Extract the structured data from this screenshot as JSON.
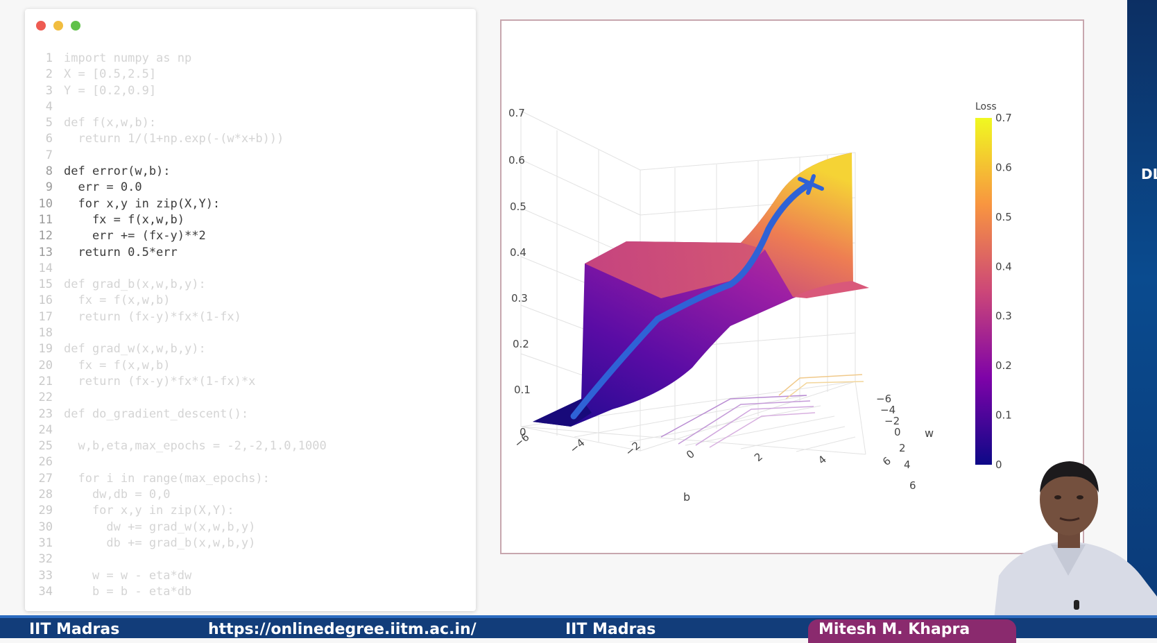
{
  "window_controls": {
    "close_color": "#ee5b52",
    "minimize_color": "#f1bd3f",
    "maximize_color": "#5fc149"
  },
  "code_lines": [
    {
      "n": "1",
      "text": "import numpy as np",
      "bright": false
    },
    {
      "n": "2",
      "text": "X = [0.5,2.5]",
      "bright": false
    },
    {
      "n": "3",
      "text": "Y = [0.2,0.9]",
      "bright": false
    },
    {
      "n": "4",
      "text": "",
      "bright": false
    },
    {
      "n": "5",
      "text": "def f(x,w,b):",
      "bright": false
    },
    {
      "n": "6",
      "text": "  return 1/(1+np.exp(-(w*x+b)))",
      "bright": false
    },
    {
      "n": "7",
      "text": "",
      "bright": false
    },
    {
      "n": "8",
      "text": "def error(w,b):",
      "bright": true
    },
    {
      "n": "9",
      "text": "  err = 0.0",
      "bright": true
    },
    {
      "n": "10",
      "text": "  for x,y in zip(X,Y):",
      "bright": true
    },
    {
      "n": "11",
      "text": "    fx = f(x,w,b)",
      "bright": true
    },
    {
      "n": "12",
      "text": "    err += (fx-y)**2",
      "bright": true
    },
    {
      "n": "13",
      "text": "  return 0.5*err",
      "bright": true
    },
    {
      "n": "14",
      "text": "",
      "bright": false
    },
    {
      "n": "15",
      "text": "def grad_b(x,w,b,y):",
      "bright": false
    },
    {
      "n": "16",
      "text": "  fx = f(x,w,b)",
      "bright": false
    },
    {
      "n": "17",
      "text": "  return (fx-y)*fx*(1-fx)",
      "bright": false
    },
    {
      "n": "18",
      "text": "",
      "bright": false
    },
    {
      "n": "19",
      "text": "def grad_w(x,w,b,y):",
      "bright": false
    },
    {
      "n": "20",
      "text": "  fx = f(x,w,b)",
      "bright": false
    },
    {
      "n": "21",
      "text": "  return (fx-y)*fx*(1-fx)*x",
      "bright": false
    },
    {
      "n": "22",
      "text": "",
      "bright": false
    },
    {
      "n": "23",
      "text": "def do_gradient_descent():",
      "bright": false
    },
    {
      "n": "24",
      "text": "",
      "bright": false
    },
    {
      "n": "25",
      "text": "  w,b,eta,max_epochs = -2,-2,1.0,1000",
      "bright": false
    },
    {
      "n": "26",
      "text": "",
      "bright": false
    },
    {
      "n": "27",
      "text": "  for i in range(max_epochs):",
      "bright": false
    },
    {
      "n": "28",
      "text": "    dw,db = 0,0",
      "bright": false
    },
    {
      "n": "29",
      "text": "    for x,y in zip(X,Y):",
      "bright": false
    },
    {
      "n": "30",
      "text": "      dw += grad_w(x,w,b,y)",
      "bright": false
    },
    {
      "n": "31",
      "text": "      db += grad_b(x,w,b,y)",
      "bright": false
    },
    {
      "n": "32",
      "text": "",
      "bright": false
    },
    {
      "n": "33",
      "text": "    w = w - eta*dw",
      "bright": false
    },
    {
      "n": "34",
      "text": "    b = b - eta*db",
      "bright": false
    }
  ],
  "chart_data": {
    "type": "surface",
    "z_ticks": [
      "0",
      "0.1",
      "0.2",
      "0.3",
      "0.4",
      "0.5",
      "0.6",
      "0.7"
    ],
    "b_ticks": [
      "−6",
      "−4",
      "−2",
      "0",
      "2",
      "4",
      "6"
    ],
    "w_ticks": [
      "−6",
      "−4",
      "−2",
      "0",
      "2",
      "4",
      "6"
    ],
    "b_label": "b",
    "w_label": "w",
    "colorbar": {
      "title": "Loss",
      "ticks": [
        "0",
        "0.1",
        "0.2",
        "0.3",
        "0.4",
        "0.5",
        "0.6",
        "0.7"
      ],
      "range": [
        0,
        0.7
      ],
      "colors": [
        "#0d0887",
        "#7e03a8",
        "#cc4778",
        "#f89540",
        "#f0f921"
      ]
    },
    "path_color": "#2f62d6"
  },
  "banner": {
    "institution": "IIT Madras",
    "url": "https://onlinedegree.iitm.ac.in/",
    "location": "IIT Madras",
    "presenter": "Mitesh M. Khapra"
  },
  "strip": {
    "text": "DL"
  }
}
